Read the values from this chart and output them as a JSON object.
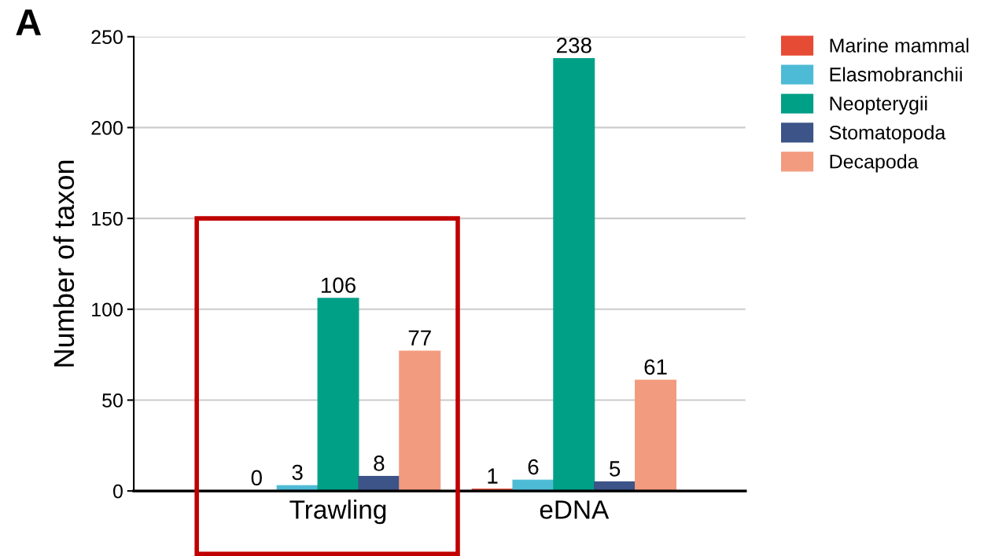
{
  "chart_data": {
    "type": "bar",
    "ylabel": "Number of taxon",
    "annotations": [
      "A"
    ],
    "categories": [
      "Trawling",
      "eDNA"
    ],
    "series": [
      {
        "name": "Marine mammal",
        "color": "#e64b35",
        "values": [
          0,
          1
        ]
      },
      {
        "name": "Elasmobranchii",
        "color": "#4dbbd5",
        "values": [
          3,
          6
        ]
      },
      {
        "name": "Neopterygii",
        "color": "#00a087",
        "values": [
          106,
          238
        ]
      },
      {
        "name": "Stomatopoda",
        "color": "#3c5488",
        "values": [
          8,
          5
        ]
      },
      {
        "name": "Decapoda",
        "color": "#f39b7f",
        "values": [
          77,
          61
        ]
      }
    ],
    "ylim": [
      0,
      250
    ],
    "yticks": [
      0,
      50,
      100,
      150,
      200,
      250
    ],
    "grid": "y",
    "legend": "top right",
    "data_labels": true
  }
}
